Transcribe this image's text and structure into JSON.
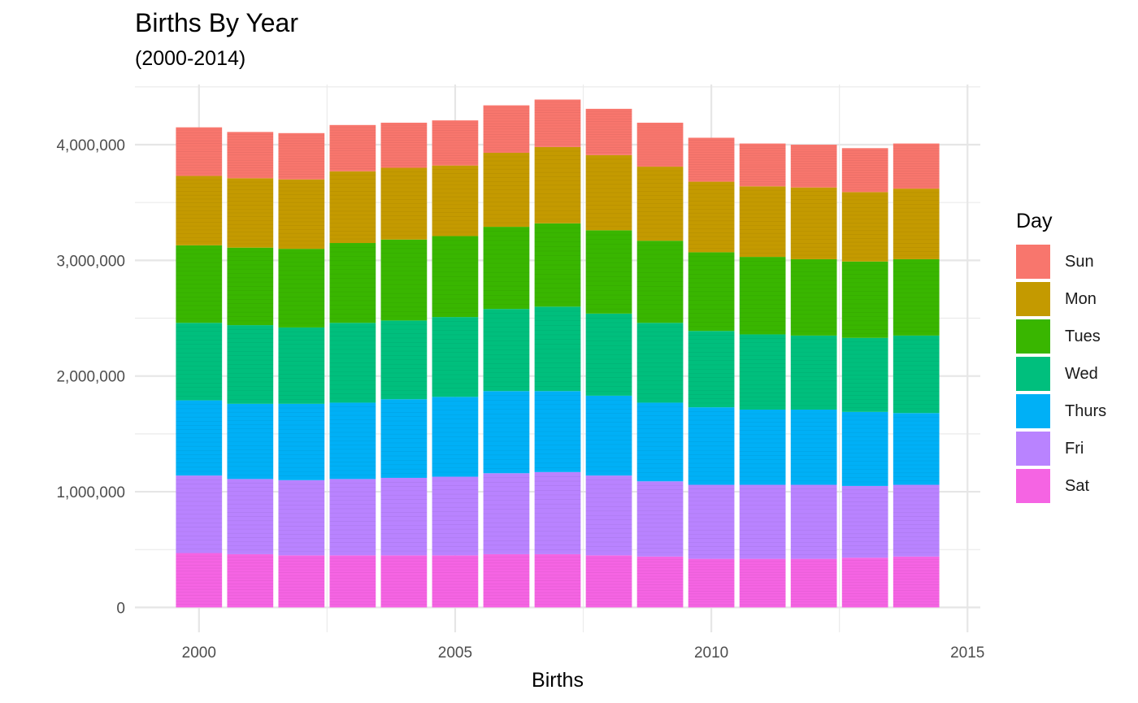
{
  "chart_data": {
    "type": "bar",
    "stacked": true,
    "title": "Births By Year",
    "subtitle": "(2000-2014)",
    "xlabel": "Births",
    "ylabel": "",
    "x_ticks": [
      "2000",
      "2005",
      "2010",
      "2015"
    ],
    "x_tick_values": [
      2000,
      2005,
      2010,
      2015
    ],
    "xlim": [
      1998.75,
      2015.25
    ],
    "y_ticks": [
      "0",
      "1,000,000",
      "2,000,000",
      "3,000,000",
      "4,000,000"
    ],
    "y_tick_values": [
      0,
      1000000,
      2000000,
      3000000,
      4000000
    ],
    "ylim": [
      -215000,
      4520000
    ],
    "grid": true,
    "legend_title": "Day",
    "legend_position": "right",
    "categories": [
      2000,
      2001,
      2002,
      2003,
      2004,
      2005,
      2006,
      2007,
      2008,
      2009,
      2010,
      2011,
      2012,
      2013,
      2014
    ],
    "series": [
      {
        "name": "Sat",
        "color": "#F564E3",
        "values": [
          470000,
          460000,
          450000,
          450000,
          450000,
          450000,
          460000,
          460000,
          450000,
          440000,
          420000,
          420000,
          420000,
          430000,
          440000
        ]
      },
      {
        "name": "Fri",
        "color": "#B983FF",
        "values": [
          670000,
          650000,
          650000,
          660000,
          670000,
          680000,
          700000,
          710000,
          690000,
          650000,
          640000,
          640000,
          640000,
          620000,
          620000
        ]
      },
      {
        "name": "Thurs",
        "color": "#00B0F6",
        "values": [
          650000,
          650000,
          660000,
          660000,
          680000,
          690000,
          710000,
          700000,
          690000,
          680000,
          670000,
          650000,
          650000,
          640000,
          620000
        ]
      },
      {
        "name": "Wed",
        "color": "#00BF7D",
        "values": [
          670000,
          680000,
          660000,
          690000,
          680000,
          690000,
          710000,
          730000,
          710000,
          690000,
          660000,
          650000,
          640000,
          640000,
          670000
        ]
      },
      {
        "name": "Tues",
        "color": "#39B600",
        "values": [
          670000,
          670000,
          680000,
          690000,
          700000,
          700000,
          710000,
          720000,
          720000,
          710000,
          680000,
          670000,
          660000,
          660000,
          660000
        ]
      },
      {
        "name": "Mon",
        "color": "#C49A00",
        "values": [
          600000,
          600000,
          600000,
          620000,
          620000,
          610000,
          640000,
          660000,
          650000,
          640000,
          610000,
          610000,
          620000,
          600000,
          610000
        ]
      },
      {
        "name": "Sun",
        "color": "#F8766D",
        "values": [
          420000,
          400000,
          400000,
          400000,
          390000,
          390000,
          410000,
          410000,
          400000,
          380000,
          380000,
          370000,
          370000,
          380000,
          390000
        ]
      }
    ]
  },
  "legend": {
    "title": "Day",
    "items": [
      {
        "label": "Sun",
        "color": "#F8766D"
      },
      {
        "label": "Mon",
        "color": "#C49A00"
      },
      {
        "label": "Tues",
        "color": "#39B600"
      },
      {
        "label": "Wed",
        "color": "#00BF7D"
      },
      {
        "label": "Thurs",
        "color": "#00B0F6"
      },
      {
        "label": "Fri",
        "color": "#B983FF"
      },
      {
        "label": "Sat",
        "color": "#F564E3"
      }
    ]
  }
}
